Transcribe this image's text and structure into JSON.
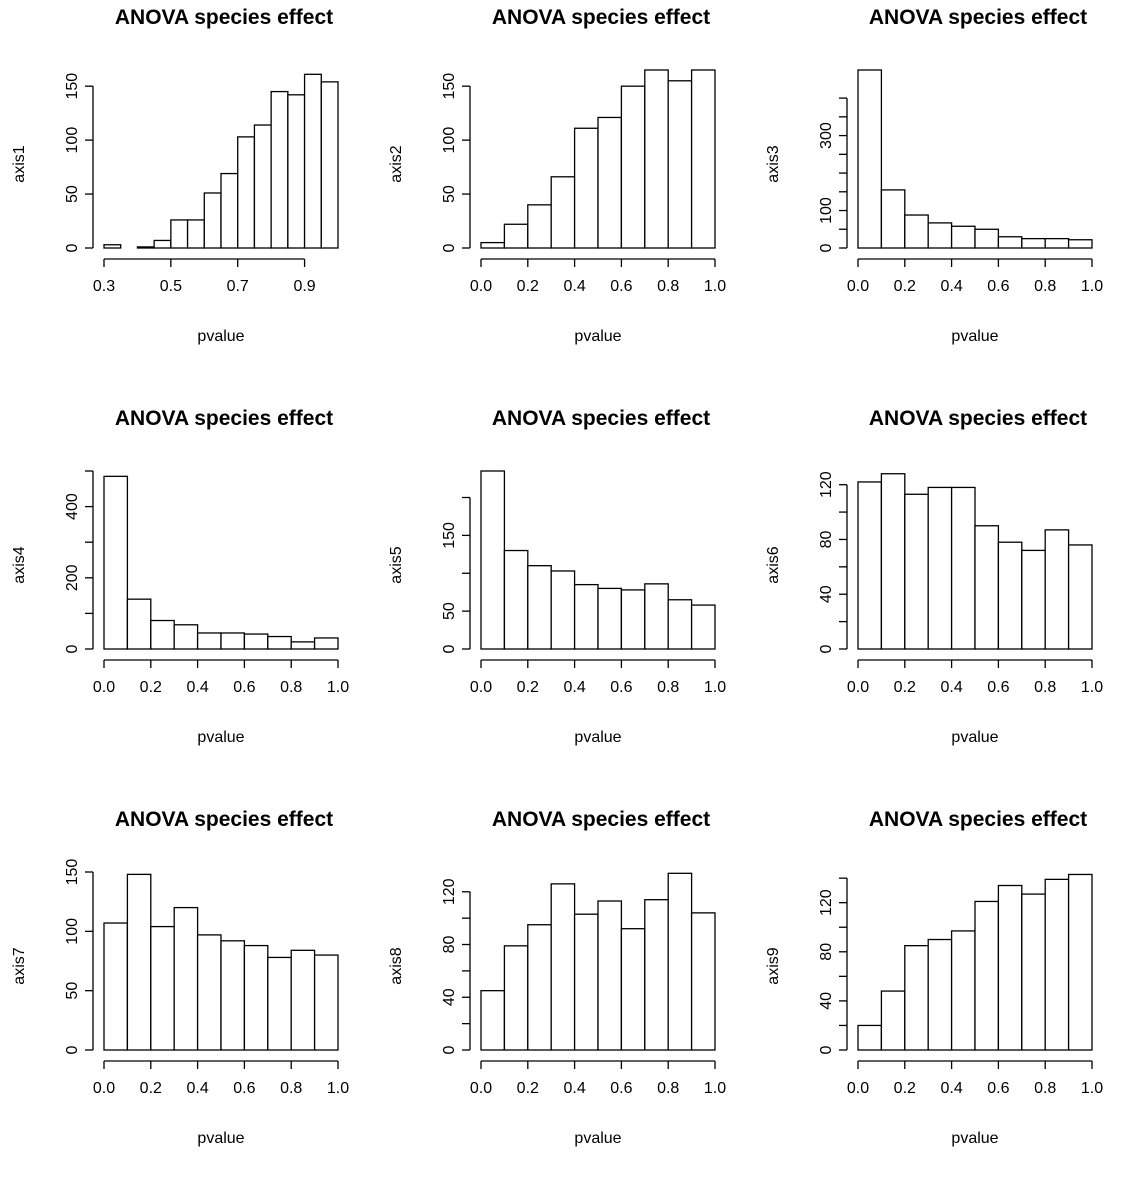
{
  "chart_data": [
    {
      "type": "bar",
      "title": "ANOVA species effect",
      "xlabel": "pvalue",
      "ylabel": "axis1",
      "x_ticks": [
        0.3,
        0.5,
        0.7,
        0.9
      ],
      "x_tick_labels": [
        "0.3",
        "0.5",
        "0.7",
        "0.9"
      ],
      "xlim": [
        0.3,
        1.0
      ],
      "y_ticks": [
        0,
        50,
        100,
        150
      ],
      "y_tick_labels": [
        "0",
        "50",
        "100",
        "150"
      ],
      "ylim": [
        0,
        165
      ],
      "bins": [
        {
          "x0": 0.3,
          "x1": 0.35,
          "count": 3
        },
        {
          "x0": 0.35,
          "x1": 0.4,
          "count": 0
        },
        {
          "x0": 0.4,
          "x1": 0.45,
          "count": 1
        },
        {
          "x0": 0.45,
          "x1": 0.5,
          "count": 7
        },
        {
          "x0": 0.5,
          "x1": 0.55,
          "count": 26
        },
        {
          "x0": 0.55,
          "x1": 0.6,
          "count": 26
        },
        {
          "x0": 0.6,
          "x1": 0.65,
          "count": 51
        },
        {
          "x0": 0.65,
          "x1": 0.7,
          "count": 69
        },
        {
          "x0": 0.7,
          "x1": 0.75,
          "count": 103
        },
        {
          "x0": 0.75,
          "x1": 0.8,
          "count": 114
        },
        {
          "x0": 0.8,
          "x1": 0.85,
          "count": 145
        },
        {
          "x0": 0.85,
          "x1": 0.9,
          "count": 142
        },
        {
          "x0": 0.9,
          "x1": 0.95,
          "count": 161
        },
        {
          "x0": 0.95,
          "x1": 1.0,
          "count": 154
        }
      ],
      "grid": false
    },
    {
      "type": "bar",
      "title": "ANOVA species effect",
      "xlabel": "pvalue",
      "ylabel": "axis2",
      "x_ticks": [
        0.0,
        0.2,
        0.4,
        0.6,
        0.8,
        1.0
      ],
      "x_tick_labels": [
        "0.0",
        "0.2",
        "0.4",
        "0.6",
        "0.8",
        "1.0"
      ],
      "xlim": [
        0,
        1
      ],
      "y_ticks": [
        0,
        50,
        100,
        150
      ],
      "y_tick_labels": [
        "0",
        "50",
        "100",
        "150"
      ],
      "ylim": [
        0,
        165
      ],
      "bins": [
        {
          "x0": 0.0,
          "x1": 0.1,
          "count": 5
        },
        {
          "x0": 0.1,
          "x1": 0.2,
          "count": 22
        },
        {
          "x0": 0.2,
          "x1": 0.3,
          "count": 40
        },
        {
          "x0": 0.3,
          "x1": 0.4,
          "count": 66
        },
        {
          "x0": 0.4,
          "x1": 0.5,
          "count": 111
        },
        {
          "x0": 0.5,
          "x1": 0.6,
          "count": 121
        },
        {
          "x0": 0.6,
          "x1": 0.7,
          "count": 150
        },
        {
          "x0": 0.7,
          "x1": 0.8,
          "count": 165
        },
        {
          "x0": 0.8,
          "x1": 0.9,
          "count": 155
        },
        {
          "x0": 0.9,
          "x1": 1.0,
          "count": 165
        }
      ],
      "grid": false
    },
    {
      "type": "bar",
      "title": "ANOVA species effect",
      "xlabel": "pvalue",
      "ylabel": "axis3",
      "x_ticks": [
        0.0,
        0.2,
        0.4,
        0.6,
        0.8,
        1.0
      ],
      "x_tick_labels": [
        "0.0",
        "0.2",
        "0.4",
        "0.6",
        "0.8",
        "1.0"
      ],
      "xlim": [
        0,
        1
      ],
      "y_ticks": [
        0,
        50,
        100,
        150,
        200,
        250,
        300,
        350,
        400
      ],
      "y_tick_labels": [
        "0",
        "",
        "100",
        "",
        "",
        "",
        "300",
        "",
        ""
      ],
      "ylim": [
        0,
        475
      ],
      "bins": [
        {
          "x0": 0.0,
          "x1": 0.1,
          "count": 475
        },
        {
          "x0": 0.1,
          "x1": 0.2,
          "count": 155
        },
        {
          "x0": 0.2,
          "x1": 0.3,
          "count": 88
        },
        {
          "x0": 0.3,
          "x1": 0.4,
          "count": 67
        },
        {
          "x0": 0.4,
          "x1": 0.5,
          "count": 58
        },
        {
          "x0": 0.5,
          "x1": 0.6,
          "count": 50
        },
        {
          "x0": 0.6,
          "x1": 0.7,
          "count": 30
        },
        {
          "x0": 0.7,
          "x1": 0.8,
          "count": 25
        },
        {
          "x0": 0.8,
          "x1": 0.9,
          "count": 25
        },
        {
          "x0": 0.9,
          "x1": 1.0,
          "count": 22
        }
      ],
      "grid": false
    },
    {
      "type": "bar",
      "title": "ANOVA species effect",
      "xlabel": "pvalue",
      "ylabel": "axis4",
      "x_ticks": [
        0.0,
        0.2,
        0.4,
        0.6,
        0.8,
        1.0
      ],
      "x_tick_labels": [
        "0.0",
        "0.2",
        "0.4",
        "0.6",
        "0.8",
        "1.0"
      ],
      "xlim": [
        0,
        1
      ],
      "y_ticks": [
        0,
        100,
        200,
        300,
        400,
        500
      ],
      "y_tick_labels": [
        "0",
        "",
        "200",
        "",
        "400",
        ""
      ],
      "ylim": [
        0,
        500
      ],
      "bins": [
        {
          "x0": 0.0,
          "x1": 0.1,
          "count": 485
        },
        {
          "x0": 0.1,
          "x1": 0.2,
          "count": 140
        },
        {
          "x0": 0.2,
          "x1": 0.3,
          "count": 80
        },
        {
          "x0": 0.3,
          "x1": 0.4,
          "count": 68
        },
        {
          "x0": 0.4,
          "x1": 0.5,
          "count": 45
        },
        {
          "x0": 0.5,
          "x1": 0.6,
          "count": 45
        },
        {
          "x0": 0.6,
          "x1": 0.7,
          "count": 42
        },
        {
          "x0": 0.7,
          "x1": 0.8,
          "count": 35
        },
        {
          "x0": 0.8,
          "x1": 0.9,
          "count": 20
        },
        {
          "x0": 0.9,
          "x1": 1.0,
          "count": 31
        }
      ],
      "grid": false
    },
    {
      "type": "bar",
      "title": "ANOVA species effect",
      "xlabel": "pvalue",
      "ylabel": "axis5",
      "x_ticks": [
        0.0,
        0.2,
        0.4,
        0.6,
        0.8,
        1.0
      ],
      "x_tick_labels": [
        "0.0",
        "0.2",
        "0.4",
        "0.6",
        "0.8",
        "1.0"
      ],
      "xlim": [
        0,
        1
      ],
      "y_ticks": [
        0,
        50,
        100,
        150,
        200
      ],
      "y_tick_labels": [
        "0",
        "50",
        "",
        "150",
        ""
      ],
      "ylim": [
        0,
        235
      ],
      "bins": [
        {
          "x0": 0.0,
          "x1": 0.1,
          "count": 235
        },
        {
          "x0": 0.1,
          "x1": 0.2,
          "count": 130
        },
        {
          "x0": 0.2,
          "x1": 0.3,
          "count": 110
        },
        {
          "x0": 0.3,
          "x1": 0.4,
          "count": 103
        },
        {
          "x0": 0.4,
          "x1": 0.5,
          "count": 85
        },
        {
          "x0": 0.5,
          "x1": 0.6,
          "count": 80
        },
        {
          "x0": 0.6,
          "x1": 0.7,
          "count": 78
        },
        {
          "x0": 0.7,
          "x1": 0.8,
          "count": 86
        },
        {
          "x0": 0.8,
          "x1": 0.9,
          "count": 65
        },
        {
          "x0": 0.9,
          "x1": 1.0,
          "count": 58
        }
      ],
      "grid": false
    },
    {
      "type": "bar",
      "title": "ANOVA species effect",
      "xlabel": "pvalue",
      "ylabel": "axis6",
      "x_ticks": [
        0.0,
        0.2,
        0.4,
        0.6,
        0.8,
        1.0
      ],
      "x_tick_labels": [
        "0.0",
        "0.2",
        "0.4",
        "0.6",
        "0.8",
        "1.0"
      ],
      "xlim": [
        0,
        1
      ],
      "y_ticks": [
        0,
        20,
        40,
        60,
        80,
        100,
        120
      ],
      "y_tick_labels": [
        "0",
        "",
        "40",
        "",
        "80",
        "",
        "120"
      ],
      "ylim": [
        0,
        130
      ],
      "bins": [
        {
          "x0": 0.0,
          "x1": 0.1,
          "count": 122
        },
        {
          "x0": 0.1,
          "x1": 0.2,
          "count": 128
        },
        {
          "x0": 0.2,
          "x1": 0.3,
          "count": 113
        },
        {
          "x0": 0.3,
          "x1": 0.4,
          "count": 118
        },
        {
          "x0": 0.4,
          "x1": 0.5,
          "count": 118
        },
        {
          "x0": 0.5,
          "x1": 0.6,
          "count": 90
        },
        {
          "x0": 0.6,
          "x1": 0.7,
          "count": 78
        },
        {
          "x0": 0.7,
          "x1": 0.8,
          "count": 72
        },
        {
          "x0": 0.8,
          "x1": 0.9,
          "count": 87
        },
        {
          "x0": 0.9,
          "x1": 1.0,
          "count": 76
        }
      ],
      "grid": false
    },
    {
      "type": "bar",
      "title": "ANOVA species effect",
      "xlabel": "pvalue",
      "ylabel": "axis7",
      "x_ticks": [
        0.0,
        0.2,
        0.4,
        0.6,
        0.8,
        1.0
      ],
      "x_tick_labels": [
        "0.0",
        "0.2",
        "0.4",
        "0.6",
        "0.8",
        "1.0"
      ],
      "xlim": [
        0,
        1
      ],
      "y_ticks": [
        0,
        50,
        100,
        150
      ],
      "y_tick_labels": [
        "0",
        "50",
        "100",
        "150"
      ],
      "ylim": [
        0,
        150
      ],
      "bins": [
        {
          "x0": 0.0,
          "x1": 0.1,
          "count": 107
        },
        {
          "x0": 0.1,
          "x1": 0.2,
          "count": 148
        },
        {
          "x0": 0.2,
          "x1": 0.3,
          "count": 104
        },
        {
          "x0": 0.3,
          "x1": 0.4,
          "count": 120
        },
        {
          "x0": 0.4,
          "x1": 0.5,
          "count": 97
        },
        {
          "x0": 0.5,
          "x1": 0.6,
          "count": 92
        },
        {
          "x0": 0.6,
          "x1": 0.7,
          "count": 88
        },
        {
          "x0": 0.7,
          "x1": 0.8,
          "count": 78
        },
        {
          "x0": 0.8,
          "x1": 0.9,
          "count": 84
        },
        {
          "x0": 0.9,
          "x1": 1.0,
          "count": 80
        }
      ],
      "grid": false
    },
    {
      "type": "bar",
      "title": "ANOVA species effect",
      "xlabel": "pvalue",
      "ylabel": "axis8",
      "x_ticks": [
        0.0,
        0.2,
        0.4,
        0.6,
        0.8,
        1.0
      ],
      "x_tick_labels": [
        "0.0",
        "0.2",
        "0.4",
        "0.6",
        "0.8",
        "1.0"
      ],
      "xlim": [
        0,
        1
      ],
      "y_ticks": [
        0,
        20,
        40,
        60,
        80,
        100,
        120
      ],
      "y_tick_labels": [
        "0",
        "",
        "40",
        "",
        "80",
        "",
        "120"
      ],
      "ylim": [
        0,
        135
      ],
      "bins": [
        {
          "x0": 0.0,
          "x1": 0.1,
          "count": 45
        },
        {
          "x0": 0.1,
          "x1": 0.2,
          "count": 79
        },
        {
          "x0": 0.2,
          "x1": 0.3,
          "count": 95
        },
        {
          "x0": 0.3,
          "x1": 0.4,
          "count": 126
        },
        {
          "x0": 0.4,
          "x1": 0.5,
          "count": 103
        },
        {
          "x0": 0.5,
          "x1": 0.6,
          "count": 113
        },
        {
          "x0": 0.6,
          "x1": 0.7,
          "count": 92
        },
        {
          "x0": 0.7,
          "x1": 0.8,
          "count": 114
        },
        {
          "x0": 0.8,
          "x1": 0.9,
          "count": 134
        },
        {
          "x0": 0.9,
          "x1": 1.0,
          "count": 104
        }
      ],
      "grid": false
    },
    {
      "type": "bar",
      "title": "ANOVA species effect",
      "xlabel": "pvalue",
      "ylabel": "axis9",
      "x_ticks": [
        0.0,
        0.2,
        0.4,
        0.6,
        0.8,
        1.0
      ],
      "x_tick_labels": [
        "0.0",
        "0.2",
        "0.4",
        "0.6",
        "0.8",
        "1.0"
      ],
      "xlim": [
        0,
        1
      ],
      "y_ticks": [
        0,
        20,
        40,
        60,
        80,
        100,
        120,
        140
      ],
      "y_tick_labels": [
        "0",
        "",
        "40",
        "",
        "80",
        "",
        "120",
        ""
      ],
      "ylim": [
        0,
        145
      ],
      "bins": [
        {
          "x0": 0.0,
          "x1": 0.1,
          "count": 20
        },
        {
          "x0": 0.1,
          "x1": 0.2,
          "count": 48
        },
        {
          "x0": 0.2,
          "x1": 0.3,
          "count": 85
        },
        {
          "x0": 0.3,
          "x1": 0.4,
          "count": 90
        },
        {
          "x0": 0.4,
          "x1": 0.5,
          "count": 97
        },
        {
          "x0": 0.5,
          "x1": 0.6,
          "count": 121
        },
        {
          "x0": 0.6,
          "x1": 0.7,
          "count": 134
        },
        {
          "x0": 0.7,
          "x1": 0.8,
          "count": 127
        },
        {
          "x0": 0.8,
          "x1": 0.9,
          "count": 139
        },
        {
          "x0": 0.9,
          "x1": 1.0,
          "count": 143
        }
      ],
      "grid": false
    }
  ]
}
